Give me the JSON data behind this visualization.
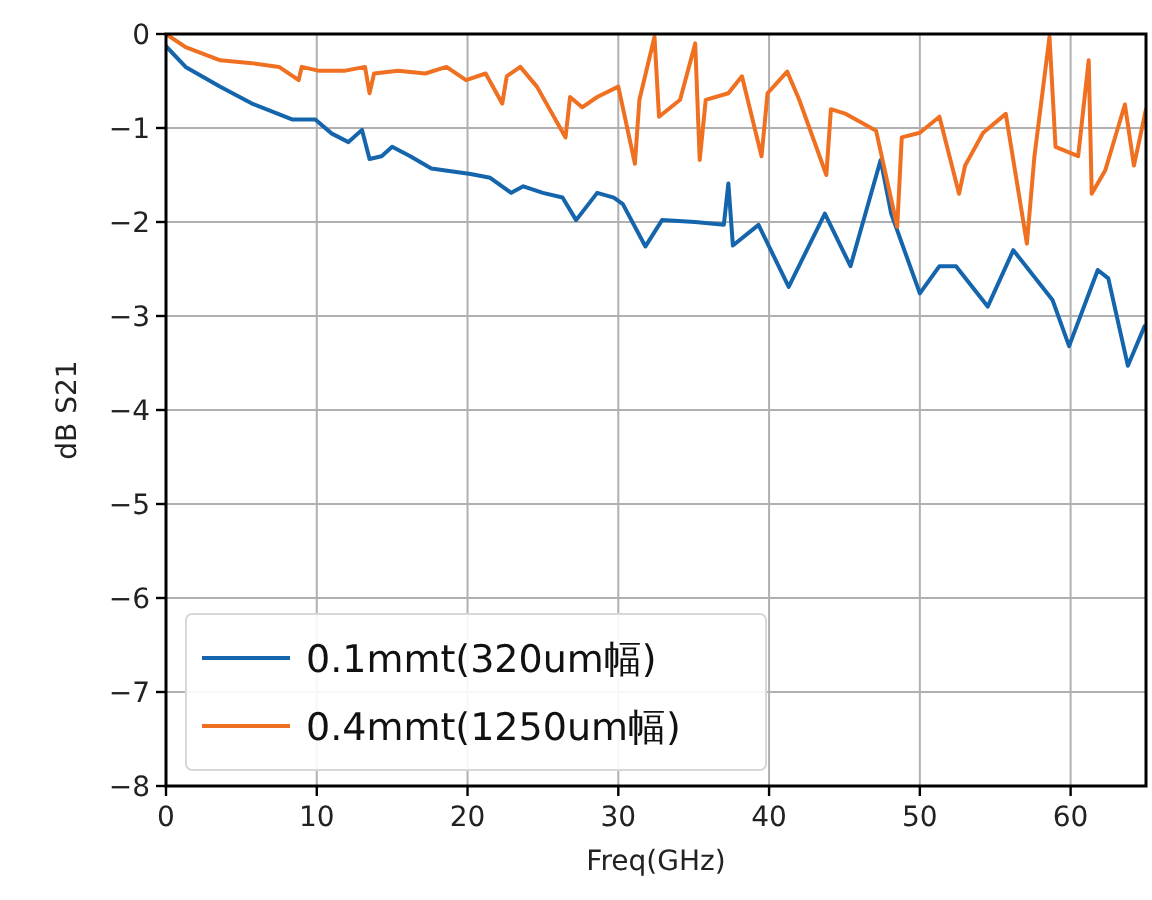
{
  "chart_data": {
    "type": "line",
    "xlabel": "Freq(GHz)",
    "ylabel": "dB S21",
    "xlim": [
      0,
      65
    ],
    "ylim": [
      -8,
      0
    ],
    "xticks": [
      0,
      10,
      20,
      30,
      40,
      50,
      60
    ],
    "yticks": [
      -8,
      -7,
      -6,
      -5,
      -4,
      -3,
      -2,
      -1,
      0
    ],
    "grid": true,
    "legend": "bottom left",
    "series": [
      {
        "name": "0.1mmt(320um幅)",
        "color": "#1565ad",
        "x": [
          0,
          1.3,
          3.6,
          5.7,
          8.4,
          9.9,
          11,
          12.1,
          13,
          13.5,
          14.3,
          15,
          16.2,
          17.6,
          18.9,
          20.2,
          21.5,
          22.9,
          23.7,
          25,
          26.3,
          27.2,
          28.6,
          29.7,
          30.3,
          31.8,
          32.9,
          35.1,
          37,
          37.3,
          37.6,
          39.3,
          41.3,
          43.7,
          45.4,
          47.4,
          48.1,
          50,
          51.3,
          52.4,
          54.5,
          56.2,
          58.8,
          59.9,
          61.8,
          62.5,
          63.8,
          64.9
        ],
        "values": [
          -0.13,
          -0.35,
          -0.56,
          -0.74,
          -0.91,
          -0.91,
          -1.06,
          -1.15,
          -1.02,
          -1.33,
          -1.3,
          -1.2,
          -1.3,
          -1.43,
          -1.46,
          -1.49,
          -1.53,
          -1.69,
          -1.62,
          -1.69,
          -1.74,
          -1.98,
          -1.69,
          -1.74,
          -1.81,
          -2.26,
          -1.98,
          -2.0,
          -2.03,
          -1.59,
          -2.25,
          -2.03,
          -2.69,
          -1.91,
          -2.47,
          -1.34,
          -1.91,
          -2.76,
          -2.47,
          -2.47,
          -2.9,
          -2.3,
          -2.83,
          -3.32,
          -2.51,
          -2.6,
          -3.53,
          -3.11
        ]
      },
      {
        "name": "0.4mmt(1250um幅)",
        "color": "#f07021",
        "x": [
          0,
          1.3,
          3.6,
          5.7,
          7.5,
          8.8,
          9.0,
          10.1,
          11.9,
          13.2,
          13.5,
          13.8,
          15.4,
          17.2,
          18.6,
          19.9,
          21.2,
          22.3,
          22.6,
          23.5,
          24.6,
          26.5,
          26.8,
          27.6,
          28.6,
          30,
          31.1,
          31.4,
          32.4,
          32.7,
          34.1,
          35.1,
          35.4,
          35.8,
          37.3,
          38.2,
          39.5,
          39.9,
          41.2,
          42,
          43.8,
          44.1,
          45.1,
          47.1,
          48.5,
          48.8,
          50,
          51.3,
          52.6,
          53,
          54.2,
          55.7,
          57.1,
          57.6,
          58.6,
          59,
          60.5,
          61.2,
          61.4,
          62.3,
          63.6,
          64.2,
          65
        ],
        "values": [
          0,
          -0.14,
          -0.28,
          -0.31,
          -0.35,
          -0.49,
          -0.35,
          -0.39,
          -0.39,
          -0.35,
          -0.63,
          -0.42,
          -0.39,
          -0.42,
          -0.35,
          -0.49,
          -0.42,
          -0.74,
          -0.45,
          -0.35,
          -0.56,
          -1.1,
          -0.67,
          -0.78,
          -0.67,
          -0.56,
          -1.38,
          -0.7,
          -0.03,
          -0.88,
          -0.7,
          -0.1,
          -1.34,
          -0.7,
          -0.63,
          -0.45,
          -1.3,
          -0.63,
          -0.4,
          -0.7,
          -1.5,
          -0.8,
          -0.85,
          -1.03,
          -2.05,
          -1.1,
          -1.05,
          -0.88,
          -1.7,
          -1.4,
          -1.05,
          -0.85,
          -2.23,
          -1.3,
          -0.03,
          -1.2,
          -1.3,
          -0.28,
          -1.7,
          -1.45,
          -0.75,
          -1.4,
          -0.8
        ]
      }
    ]
  }
}
